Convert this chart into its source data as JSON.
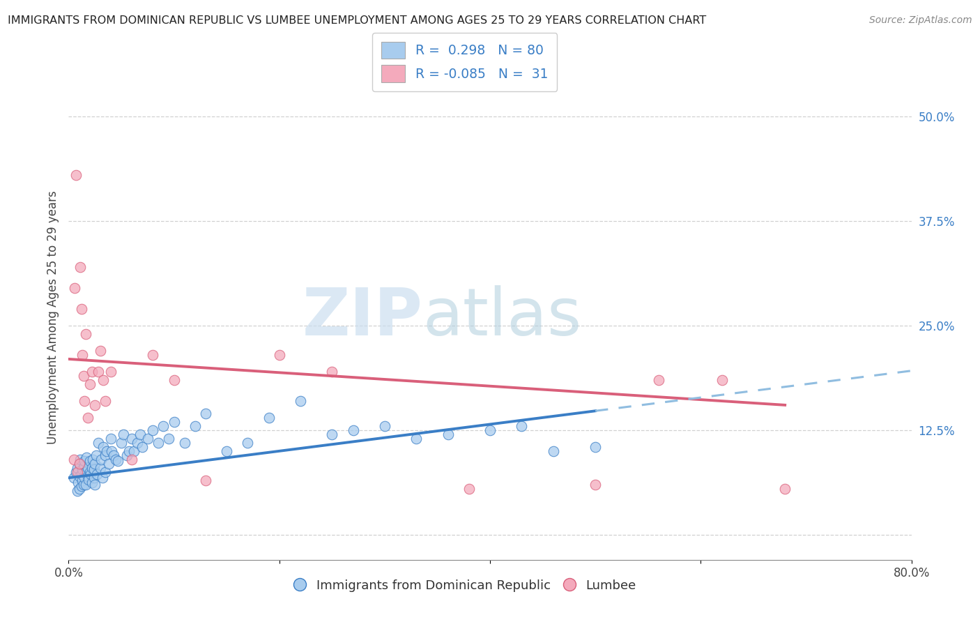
{
  "title": "IMMIGRANTS FROM DOMINICAN REPUBLIC VS LUMBEE UNEMPLOYMENT AMONG AGES 25 TO 29 YEARS CORRELATION CHART",
  "source": "Source: ZipAtlas.com",
  "ylabel": "Unemployment Among Ages 25 to 29 years",
  "xlim": [
    0,
    0.8
  ],
  "ylim": [
    -0.03,
    0.55
  ],
  "blue_color": "#A8CCEE",
  "pink_color": "#F4AABC",
  "blue_line_color": "#3A7EC6",
  "pink_line_color": "#D95F7A",
  "dash_line_color": "#90BDE0",
  "R_blue": 0.298,
  "N_blue": 80,
  "R_pink": -0.085,
  "N_pink": 31,
  "watermark_zip": "ZIP",
  "watermark_atlas": "atlas",
  "blue_scatter_x": [
    0.005,
    0.007,
    0.008,
    0.008,
    0.009,
    0.01,
    0.01,
    0.01,
    0.011,
    0.012,
    0.012,
    0.013,
    0.013,
    0.014,
    0.015,
    0.015,
    0.015,
    0.016,
    0.016,
    0.017,
    0.018,
    0.018,
    0.019,
    0.02,
    0.02,
    0.021,
    0.022,
    0.022,
    0.023,
    0.024,
    0.024,
    0.025,
    0.025,
    0.026,
    0.027,
    0.028,
    0.03,
    0.031,
    0.032,
    0.033,
    0.035,
    0.035,
    0.036,
    0.038,
    0.04,
    0.041,
    0.043,
    0.045,
    0.047,
    0.05,
    0.052,
    0.055,
    0.057,
    0.06,
    0.062,
    0.065,
    0.068,
    0.07,
    0.075,
    0.08,
    0.085,
    0.09,
    0.095,
    0.1,
    0.11,
    0.12,
    0.13,
    0.15,
    0.17,
    0.19,
    0.22,
    0.25,
    0.27,
    0.3,
    0.33,
    0.36,
    0.4,
    0.43,
    0.46,
    0.5
  ],
  "blue_scatter_y": [
    0.068,
    0.075,
    0.052,
    0.08,
    0.062,
    0.055,
    0.07,
    0.085,
    0.09,
    0.058,
    0.072,
    0.065,
    0.078,
    0.06,
    0.068,
    0.082,
    0.088,
    0.075,
    0.06,
    0.092,
    0.07,
    0.08,
    0.066,
    0.075,
    0.088,
    0.072,
    0.08,
    0.062,
    0.09,
    0.068,
    0.078,
    0.06,
    0.085,
    0.095,
    0.072,
    0.11,
    0.08,
    0.09,
    0.068,
    0.105,
    0.075,
    0.095,
    0.1,
    0.085,
    0.115,
    0.1,
    0.095,
    0.09,
    0.088,
    0.11,
    0.12,
    0.095,
    0.1,
    0.115,
    0.1,
    0.11,
    0.12,
    0.105,
    0.115,
    0.125,
    0.11,
    0.13,
    0.115,
    0.135,
    0.11,
    0.13,
    0.145,
    0.1,
    0.11,
    0.14,
    0.16,
    0.12,
    0.125,
    0.13,
    0.115,
    0.12,
    0.125,
    0.13,
    0.1,
    0.105
  ],
  "pink_scatter_x": [
    0.005,
    0.006,
    0.007,
    0.008,
    0.01,
    0.011,
    0.012,
    0.013,
    0.014,
    0.015,
    0.016,
    0.018,
    0.02,
    0.022,
    0.025,
    0.028,
    0.03,
    0.033,
    0.035,
    0.04,
    0.06,
    0.08,
    0.1,
    0.13,
    0.2,
    0.25,
    0.38,
    0.5,
    0.56,
    0.62,
    0.68
  ],
  "pink_scatter_y": [
    0.09,
    0.295,
    0.43,
    0.075,
    0.085,
    0.32,
    0.27,
    0.215,
    0.19,
    0.16,
    0.24,
    0.14,
    0.18,
    0.195,
    0.155,
    0.195,
    0.22,
    0.185,
    0.16,
    0.195,
    0.09,
    0.215,
    0.185,
    0.065,
    0.215,
    0.195,
    0.055,
    0.06,
    0.185,
    0.185,
    0.055
  ],
  "blue_trend_x0": 0.0,
  "blue_trend_y0": 0.068,
  "blue_trend_x1": 0.5,
  "blue_trend_y1": 0.148,
  "pink_trend_x0": 0.0,
  "pink_trend_y0": 0.21,
  "pink_trend_x1": 0.68,
  "pink_trend_y1": 0.155,
  "dash_trend_x0": 0.5,
  "dash_trend_y0": 0.148,
  "dash_trend_x1": 0.8,
  "dash_trend_y1": 0.196,
  "background_color": "#FFFFFF",
  "grid_color": "#CCCCCC"
}
